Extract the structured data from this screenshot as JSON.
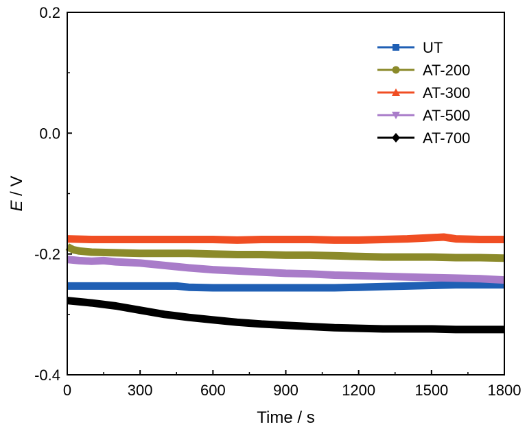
{
  "chart_data": {
    "type": "line",
    "title": "",
    "xlabel": "Time / s",
    "ylabel_italic": "E",
    "ylabel_rest": " / V",
    "xlim": [
      0,
      1800
    ],
    "ylim": [
      -0.4,
      0.2
    ],
    "xticks": [
      0,
      300,
      600,
      900,
      1200,
      1500,
      1800
    ],
    "xtick_labels": [
      "0",
      "300",
      "600",
      "900",
      "1200",
      "1500",
      "1800"
    ],
    "yticks": [
      -0.4,
      -0.2,
      0.0,
      0.2
    ],
    "ytick_labels": [
      "-0.4",
      "-0.2",
      "0.0",
      "0.2"
    ],
    "grid": false,
    "legend_position": "top-right",
    "series": [
      {
        "name": "UT",
        "color": "#1f5fb4",
        "marker": "square",
        "x": [
          0,
          100,
          200,
          300,
          400,
          450,
          500,
          600,
          700,
          800,
          900,
          1000,
          1100,
          1200,
          1300,
          1400,
          1500,
          1600,
          1700,
          1800
        ],
        "y": [
          -0.253,
          -0.253,
          -0.253,
          -0.253,
          -0.253,
          -0.253,
          -0.255,
          -0.256,
          -0.256,
          -0.256,
          -0.256,
          -0.256,
          -0.256,
          -0.255,
          -0.254,
          -0.253,
          -0.252,
          -0.251,
          -0.251,
          -0.251
        ]
      },
      {
        "name": "AT-200",
        "color": "#8b8a2a",
        "marker": "circle",
        "x": [
          0,
          25,
          50,
          100,
          200,
          300,
          400,
          500,
          600,
          700,
          800,
          900,
          1000,
          1100,
          1200,
          1300,
          1400,
          1500,
          1600,
          1700,
          1800
        ],
        "y": [
          -0.188,
          -0.193,
          -0.195,
          -0.197,
          -0.198,
          -0.199,
          -0.199,
          -0.199,
          -0.2,
          -0.201,
          -0.201,
          -0.202,
          -0.202,
          -0.203,
          -0.204,
          -0.205,
          -0.205,
          -0.205,
          -0.206,
          -0.206,
          -0.207
        ]
      },
      {
        "name": "AT-300",
        "color": "#f04e23",
        "marker": "triangle-up",
        "x": [
          0,
          100,
          200,
          300,
          400,
          500,
          600,
          700,
          800,
          900,
          1000,
          1100,
          1200,
          1300,
          1400,
          1500,
          1550,
          1600,
          1700,
          1800
        ],
        "y": [
          -0.175,
          -0.176,
          -0.176,
          -0.176,
          -0.176,
          -0.176,
          -0.176,
          -0.177,
          -0.176,
          -0.176,
          -0.176,
          -0.177,
          -0.177,
          -0.176,
          -0.175,
          -0.173,
          -0.172,
          -0.175,
          -0.176,
          -0.176
        ]
      },
      {
        "name": "AT-500",
        "color": "#a97cc9",
        "marker": "triangle-down",
        "x": [
          0,
          50,
          100,
          150,
          200,
          300,
          400,
          500,
          600,
          700,
          800,
          900,
          1000,
          1100,
          1200,
          1300,
          1400,
          1500,
          1600,
          1700,
          1800
        ],
        "y": [
          -0.209,
          -0.211,
          -0.212,
          -0.211,
          -0.213,
          -0.215,
          -0.219,
          -0.223,
          -0.226,
          -0.228,
          -0.23,
          -0.232,
          -0.233,
          -0.235,
          -0.236,
          -0.237,
          -0.238,
          -0.239,
          -0.24,
          -0.241,
          -0.243
        ]
      },
      {
        "name": "AT-700",
        "color": "#000000",
        "marker": "diamond",
        "x": [
          0,
          100,
          200,
          300,
          400,
          500,
          600,
          700,
          800,
          900,
          1000,
          1100,
          1200,
          1300,
          1400,
          1500,
          1600,
          1700,
          1800
        ],
        "y": [
          -0.277,
          -0.281,
          -0.286,
          -0.293,
          -0.3,
          -0.305,
          -0.309,
          -0.313,
          -0.316,
          -0.318,
          -0.32,
          -0.322,
          -0.323,
          -0.324,
          -0.324,
          -0.324,
          -0.325,
          -0.325,
          -0.325
        ]
      }
    ]
  }
}
